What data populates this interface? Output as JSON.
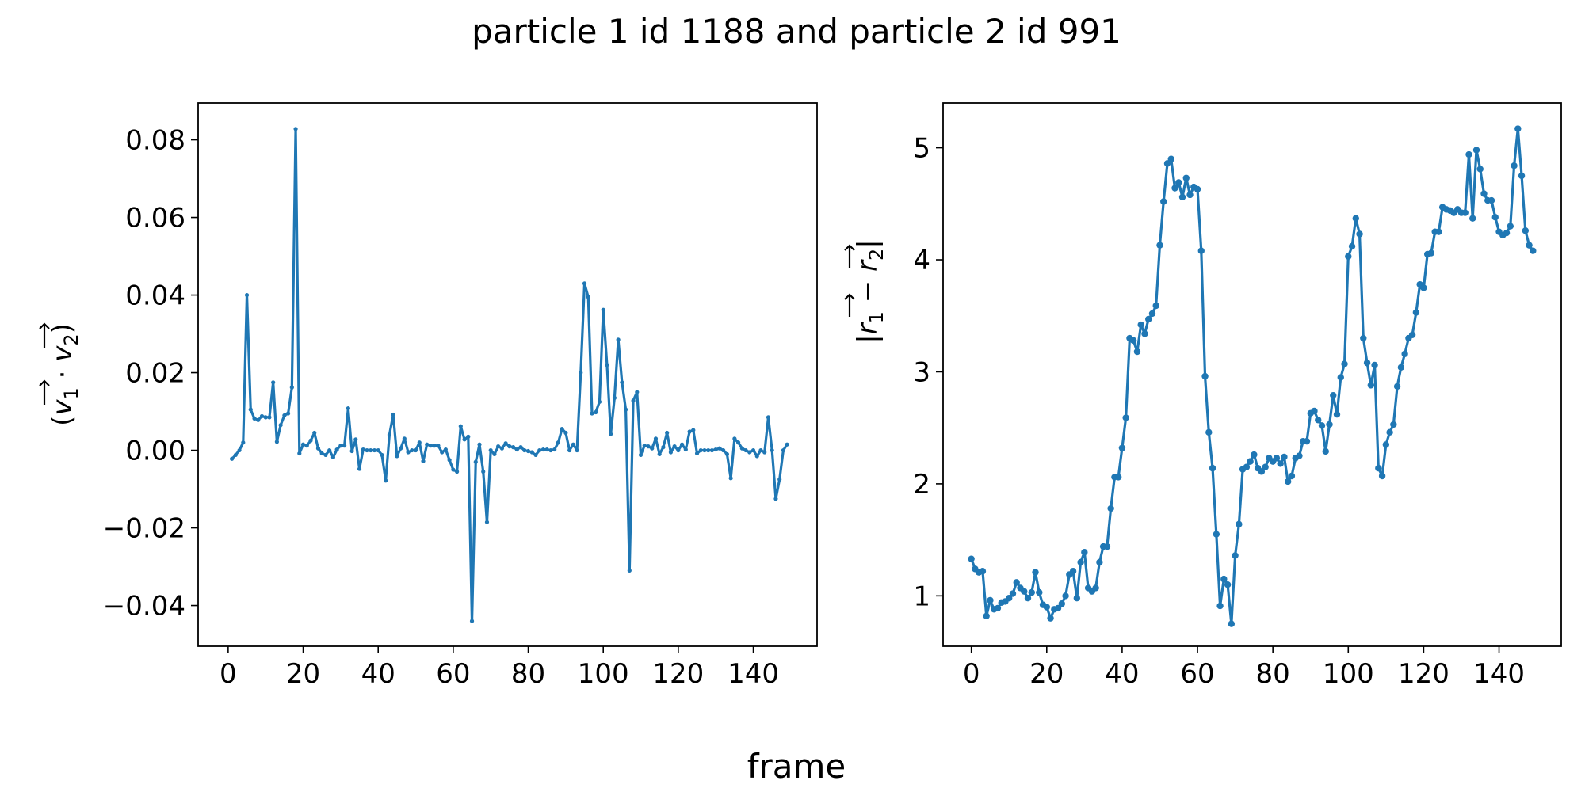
{
  "figure": {
    "title": "particle 1 id 1188 and particle 2 id 991",
    "xlabel": "frame",
    "line_color": "#1f77b4"
  },
  "chart_data": [
    {
      "type": "line",
      "title": "",
      "xlabel": "",
      "ylabel": "(v₁ · v₂)",
      "ylabel_parts": {
        "open": "(",
        "v1": "v",
        "sub1": "1",
        "dot": " · ",
        "v2": "v",
        "sub2": "2",
        "close": ")"
      },
      "xlim": [
        -8,
        157
      ],
      "ylim": [
        -0.0505,
        0.0895
      ],
      "xticks": [
        0,
        20,
        40,
        60,
        80,
        100,
        120,
        140
      ],
      "yticks": [
        -0.04,
        -0.02,
        0.0,
        0.02,
        0.04,
        0.06,
        0.08
      ],
      "ytick_labels": [
        "−0.04",
        "−0.02",
        "0.00",
        "0.02",
        "0.04",
        "0.06",
        "0.08"
      ],
      "grid": false,
      "marker_radius": 2.6,
      "series": [
        {
          "x": [
            1,
            2,
            3,
            4,
            5,
            6,
            7,
            8,
            9,
            10,
            11,
            12,
            13,
            14,
            15,
            16,
            17,
            18,
            19,
            20,
            21,
            22,
            23,
            24,
            25,
            26,
            27,
            28,
            29,
            30,
            31,
            32,
            33,
            34,
            35,
            36,
            37,
            38,
            39,
            40,
            41,
            42,
            43,
            44,
            45,
            46,
            47,
            48,
            49,
            50,
            51,
            52,
            53,
            54,
            55,
            56,
            57,
            58,
            59,
            60,
            61,
            62,
            63,
            64,
            65,
            66,
            67,
            68,
            69,
            70,
            71,
            72,
            73,
            74,
            75,
            76,
            77,
            78,
            79,
            80,
            81,
            82,
            83,
            84,
            85,
            86,
            87,
            88,
            89,
            90,
            91,
            92,
            93,
            94,
            95,
            96,
            97,
            98,
            99,
            100,
            101,
            102,
            103,
            104,
            105,
            106,
            107,
            108,
            109,
            110,
            111,
            112,
            113,
            114,
            115,
            116,
            117,
            118,
            119,
            120,
            121,
            122,
            123,
            124,
            125,
            126,
            127,
            128,
            129,
            130,
            131,
            132,
            133,
            134,
            135,
            136,
            137,
            138,
            139,
            140,
            141,
            142,
            143,
            144,
            145,
            146,
            147,
            148,
            149
          ],
          "values": [
            -0.0022,
            -0.0012,
            0.0,
            0.002,
            0.04,
            0.0105,
            0.0082,
            0.0078,
            0.0088,
            0.0085,
            0.0085,
            0.0175,
            0.0022,
            0.0065,
            0.009,
            0.0095,
            0.0162,
            0.0828,
            -0.0008,
            0.0015,
            0.0012,
            0.0025,
            0.0045,
            0.0005,
            -0.0008,
            -0.0012,
            0.0,
            -0.0018,
            0.0002,
            0.0012,
            0.0012,
            0.0108,
            -0.0002,
            0.0028,
            -0.0048,
            0.0002,
            0.0,
            0.0,
            0.0,
            0.0,
            -0.0012,
            -0.0078,
            0.004,
            0.0092,
            -0.0015,
            0.0005,
            0.003,
            -0.0005,
            0.0,
            0.0,
            0.002,
            -0.0028,
            0.0015,
            0.0012,
            0.0012,
            0.0012,
            -0.0005,
            0.0002,
            -0.0025,
            -0.005,
            -0.0055,
            0.0062,
            0.0028,
            0.0035,
            -0.044,
            -0.003,
            0.0015,
            -0.0055,
            -0.0185,
            0.0,
            -0.001,
            0.001,
            0.0005,
            0.0018,
            0.001,
            0.0008,
            0.0002,
            0.0008,
            0.0,
            -0.0002,
            -0.0005,
            -0.0012,
            0.0,
            0.0002,
            0.0002,
            0.0,
            0.0002,
            0.002,
            0.0055,
            0.0045,
            0.0,
            0.0015,
            0.0,
            0.02,
            0.043,
            0.0395,
            0.0095,
            0.0098,
            0.0125,
            0.0362,
            0.022,
            0.0042,
            0.0135,
            0.0285,
            0.0175,
            0.0105,
            -0.031,
            0.0128,
            0.015,
            -0.0012,
            0.0012,
            0.001,
            0.0005,
            0.003,
            -0.001,
            0.0008,
            0.0045,
            -0.0005,
            0.001,
            0.0,
            0.0015,
            0.0002,
            0.0048,
            0.0052,
            -0.0008,
            0.0,
            0.0,
            0.0,
            0.0,
            0.0002,
            0.0005,
            0.0,
            -0.001,
            -0.0072,
            0.003,
            0.002,
            0.0005,
            0.0,
            -0.0005,
            0.0,
            -0.0015,
            0.0,
            -0.0005,
            0.0085,
            0.0,
            -0.0125,
            -0.0075,
            0.0,
            0.0015
          ]
        }
      ]
    },
    {
      "type": "line",
      "title": "",
      "xlabel": "",
      "ylabel": "|r₁ − r₂|",
      "ylabel_parts": {
        "open": "|",
        "v1": "r",
        "sub1": "1",
        "dot": " − ",
        "v2": "r",
        "sub2": "2",
        "close": "|"
      },
      "xlim": [
        -7.5,
        156.5
      ],
      "ylim": [
        0.55,
        5.4
      ],
      "xticks": [
        0,
        20,
        40,
        60,
        80,
        100,
        120,
        140
      ],
      "yticks": [
        1,
        2,
        3,
        4,
        5
      ],
      "ytick_labels": [
        "1",
        "2",
        "3",
        "4",
        "5"
      ],
      "grid": false,
      "marker_radius": 4.2,
      "series": [
        {
          "x": [
            0,
            1,
            2,
            3,
            4,
            5,
            6,
            7,
            8,
            9,
            10,
            11,
            12,
            13,
            14,
            15,
            16,
            17,
            18,
            19,
            20,
            21,
            22,
            23,
            24,
            25,
            26,
            27,
            28,
            29,
            30,
            31,
            32,
            33,
            34,
            35,
            36,
            37,
            38,
            39,
            40,
            41,
            42,
            43,
            44,
            45,
            46,
            47,
            48,
            49,
            50,
            51,
            52,
            53,
            54,
            55,
            56,
            57,
            58,
            59,
            60,
            61,
            62,
            63,
            64,
            65,
            66,
            67,
            68,
            69,
            70,
            71,
            72,
            73,
            74,
            75,
            76,
            77,
            78,
            79,
            80,
            81,
            82,
            83,
            84,
            85,
            86,
            87,
            88,
            89,
            90,
            91,
            92,
            93,
            94,
            95,
            96,
            97,
            98,
            99,
            100,
            101,
            102,
            103,
            104,
            105,
            106,
            107,
            108,
            109,
            110,
            111,
            112,
            113,
            114,
            115,
            116,
            117,
            118,
            119,
            120,
            121,
            122,
            123,
            124,
            125,
            126,
            127,
            128,
            129,
            130,
            131,
            132,
            133,
            134,
            135,
            136,
            137,
            138,
            139,
            140,
            141,
            142,
            143,
            144,
            145,
            146,
            147,
            148,
            149
          ],
          "values": [
            1.33,
            1.24,
            1.21,
            1.22,
            0.82,
            0.96,
            0.88,
            0.89,
            0.94,
            0.95,
            0.98,
            1.02,
            1.12,
            1.07,
            1.04,
            0.98,
            1.03,
            1.21,
            1.03,
            0.92,
            0.9,
            0.8,
            0.88,
            0.89,
            0.93,
            1.0,
            1.19,
            1.22,
            0.98,
            1.3,
            1.39,
            1.07,
            1.04,
            1.07,
            1.3,
            1.44,
            1.44,
            1.78,
            2.06,
            2.06,
            2.32,
            2.59,
            3.3,
            3.28,
            3.18,
            3.42,
            3.34,
            3.47,
            3.52,
            3.59,
            4.13,
            4.52,
            4.86,
            4.9,
            4.64,
            4.69,
            4.56,
            4.73,
            4.58,
            4.65,
            4.63,
            4.08,
            2.96,
            2.46,
            2.14,
            1.55,
            0.91,
            1.15,
            1.1,
            0.75,
            1.36,
            1.64,
            2.13,
            2.15,
            2.2,
            2.26,
            2.14,
            2.11,
            2.15,
            2.23,
            2.2,
            2.23,
            2.18,
            2.24,
            2.02,
            2.07,
            2.23,
            2.25,
            2.38,
            2.38,
            2.63,
            2.65,
            2.57,
            2.52,
            2.29,
            2.53,
            2.79,
            2.62,
            2.95,
            3.07,
            4.03,
            4.12,
            4.37,
            4.23,
            3.3,
            3.08,
            2.88,
            3.06,
            2.14,
            2.07,
            2.35,
            2.46,
            2.53,
            2.87,
            3.04,
            3.16,
            3.3,
            3.33,
            3.53,
            3.78,
            3.75,
            4.05,
            4.06,
            4.25,
            4.25,
            4.47,
            4.45,
            4.44,
            4.42,
            4.45,
            4.42,
            4.42,
            4.94,
            4.37,
            4.98,
            4.81,
            4.59,
            4.53,
            4.53,
            4.38,
            4.25,
            4.22,
            4.24,
            4.3,
            4.84,
            5.17,
            4.75,
            4.26,
            4.13,
            4.08
          ]
        }
      ]
    }
  ]
}
